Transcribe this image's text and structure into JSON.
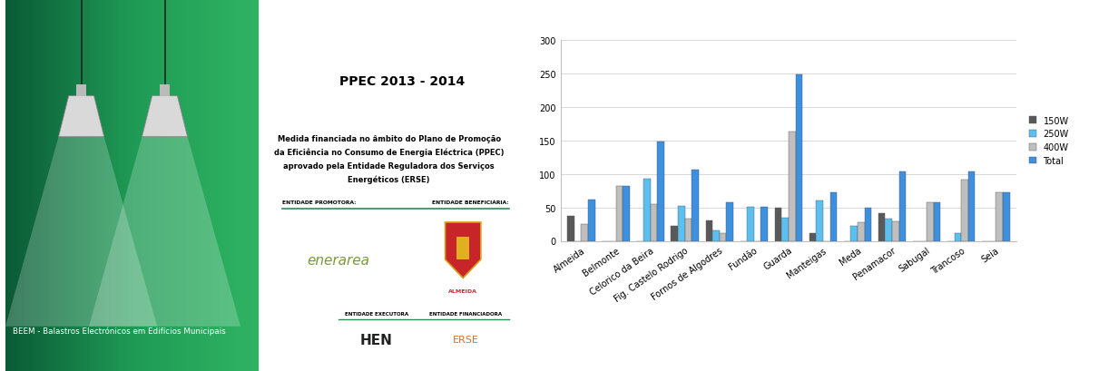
{
  "document": {
    "cover": {
      "caption": "BEEM - Balastros Electrónicos em Edifícios Municipais"
    },
    "info": {
      "title": "PPEC 2013 - 2014",
      "text_lines": [
        "Medida financiada no âmbito do Plano de Promoção",
        "da Eficiência no Consumo de Energia Eléctrica (PPEC)",
        "aprovado pela Entidade Reguladora dos Serviços",
        "Energéticos (ERSE)"
      ],
      "promoter_label": "ENTIDADE PROMOTORA:",
      "beneficiary_label": "ENTIDADE BENEFICIÁRIA:",
      "promoter": "enerarea",
      "beneficiary": "ALMEIDA",
      "executor_label": "ENTIDADE EXECUTORA",
      "funder_label": "ENTIDADE FINANCIADORA",
      "executor": "HEN",
      "funder": "ERSE"
    }
  },
  "chart_data": {
    "type": "bar",
    "categories": [
      "Almeida",
      "Belmonte",
      "Celorico da Beira",
      "Fig. Castelo Rodrigo",
      "Fornos de Algodres",
      "Fundão",
      "Guarda",
      "Manteigas",
      "Meda",
      "Penamacor",
      "Sabugal",
      "Trancoso",
      "Seia"
    ],
    "series": [
      {
        "name": "150W",
        "color": "#595959",
        "values": [
          37,
          0,
          0,
          22,
          30,
          0,
          50,
          12,
          0,
          42,
          0,
          0,
          0
        ]
      },
      {
        "name": "250W",
        "color": "#5bc0f0",
        "values": [
          0,
          0,
          93,
          52,
          16,
          51,
          35,
          60,
          22,
          33,
          0,
          11,
          0
        ]
      },
      {
        "name": "400W",
        "color": "#bfbfbf",
        "values": [
          25,
          82,
          55,
          33,
          12,
          0,
          163,
          0,
          28,
          29,
          58,
          92,
          72
        ]
      },
      {
        "name": "Total",
        "color": "#3d8fe0",
        "values": [
          62,
          82,
          148,
          107,
          58,
          51,
          248,
          72,
          50,
          104,
          58,
          103,
          72
        ]
      }
    ],
    "ylim": [
      0,
      300
    ],
    "yticks": [
      0,
      50,
      100,
      150,
      200,
      250,
      300
    ],
    "grid": true,
    "legend": "center left"
  }
}
